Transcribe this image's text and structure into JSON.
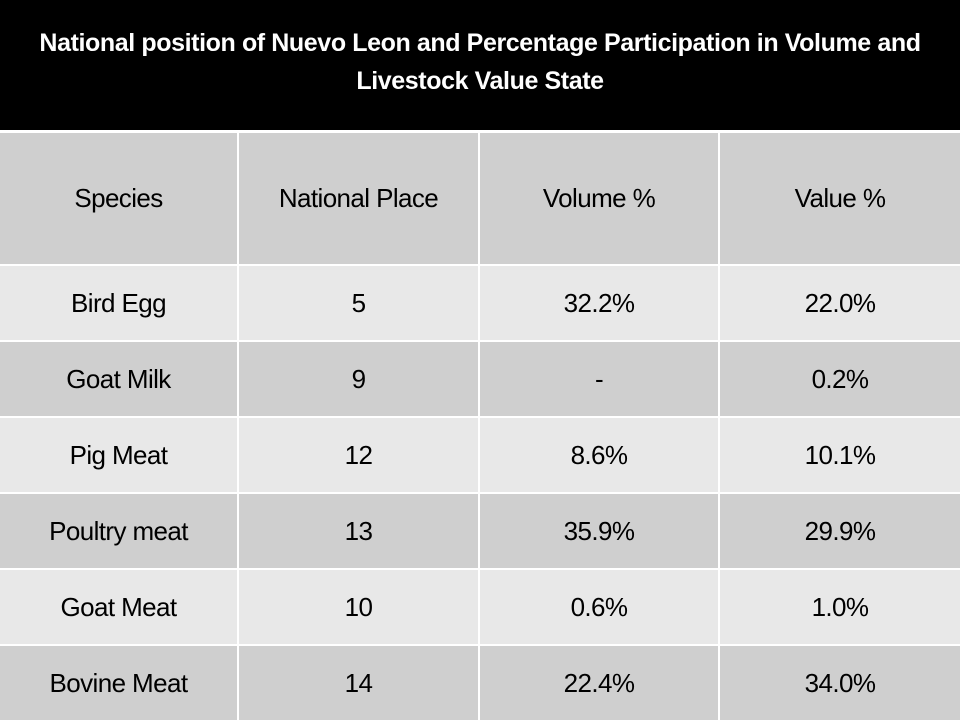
{
  "slide": {
    "title": "National position of Nuevo Leon and Percentage Participation in Volume and Livestock Value State"
  },
  "table": {
    "headers": [
      "Species",
      "National Place",
      "Volume %",
      "Value %"
    ],
    "rows": [
      [
        "Bird Egg",
        "5",
        "32.2%",
        "22.0%"
      ],
      [
        "Goat Milk",
        "9",
        "-",
        "0.2%"
      ],
      [
        "Pig Meat",
        "12",
        "8.6%",
        "10.1%"
      ],
      [
        "Poultry meat",
        "13",
        "35.9%",
        "29.9%"
      ],
      [
        "Goat Meat",
        "10",
        "0.6%",
        "1.0%"
      ],
      [
        "Bovine Meat",
        "14",
        "22.4%",
        "34.0%"
      ]
    ]
  },
  "colors": {
    "title_background": "#000000",
    "title_text": "#ffffff",
    "header_background": "#cfcfcf",
    "row_light": "#e8e8e8",
    "row_dark": "#cfcfcf"
  }
}
